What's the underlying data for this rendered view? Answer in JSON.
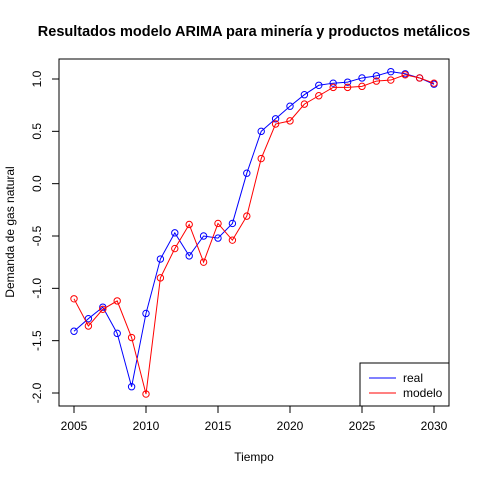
{
  "chart_data": {
    "type": "line",
    "title": "Resultados modelo ARIMA para minería y productos metálicos",
    "xlabel": "Tiempo",
    "ylabel": "Demanda de gas natural",
    "xlim": [
      2005,
      2030
    ],
    "ylim": [
      -2.0,
      1.0
    ],
    "xticks": [
      2005,
      2010,
      2015,
      2020,
      2025,
      2030
    ],
    "yticks": [
      -2.0,
      -1.5,
      -1.0,
      -0.5,
      0.0,
      0.5,
      1.0
    ],
    "ytick_labels": [
      "-2.0",
      "-1.5",
      "-1.0",
      "-0.5",
      "0.0",
      "0.5",
      "1.0"
    ],
    "x": [
      2005,
      2006,
      2007,
      2008,
      2009,
      2010,
      2011,
      2012,
      2013,
      2014,
      2015,
      2016,
      2017,
      2018,
      2019,
      2020,
      2021,
      2022,
      2023,
      2024,
      2025,
      2026,
      2027,
      2028,
      2029,
      2030
    ],
    "series": [
      {
        "name": "real",
        "color": "#0000ff",
        "values": [
          -1.41,
          -1.29,
          -1.18,
          -1.43,
          -1.94,
          -1.24,
          -0.72,
          -0.47,
          -0.69,
          -0.5,
          -0.52,
          -0.38,
          0.1,
          0.5,
          0.62,
          0.74,
          0.85,
          0.94,
          0.96,
          0.97,
          1.01,
          1.03,
          1.07,
          1.05,
          1.01,
          0.95
        ]
      },
      {
        "name": "modelo",
        "color": "#ff0000",
        "values": [
          -1.1,
          -1.36,
          -1.2,
          -1.12,
          -1.47,
          -2.01,
          -0.9,
          -0.62,
          -0.39,
          -0.75,
          -0.38,
          -0.54,
          -0.31,
          0.24,
          0.57,
          0.6,
          0.76,
          0.84,
          0.92,
          0.92,
          0.93,
          0.98,
          0.99,
          1.04,
          1.01,
          0.96
        ]
      }
    ],
    "legend": {
      "position": "bottom-right",
      "entries": [
        "real",
        "modelo"
      ]
    },
    "grid": false
  }
}
